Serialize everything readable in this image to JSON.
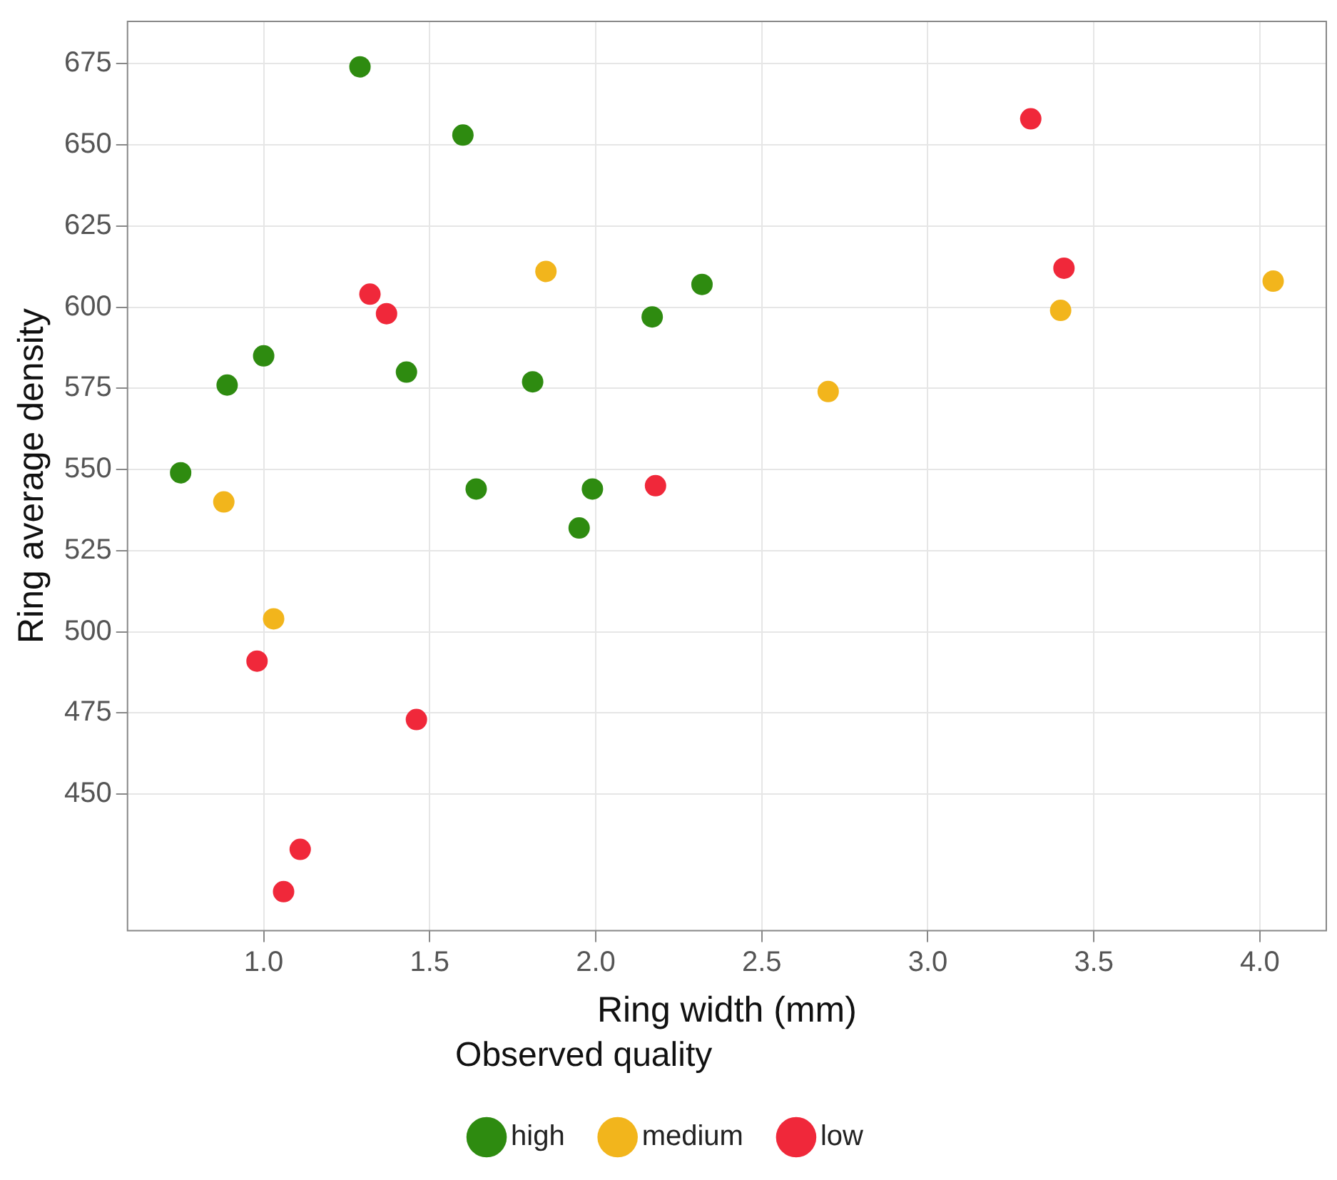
{
  "chart_data": {
    "type": "scatter",
    "xlabel": "Ring width (mm)",
    "ylabel": "Ring average density",
    "legend_title": "Observed quality",
    "xlim": [
      0.59,
      4.2
    ],
    "ylim": [
      408,
      688
    ],
    "xticks": [
      {
        "value": 1,
        "label": "1.0"
      },
      1.5,
      {
        "value": 2,
        "label": "2.0"
      },
      2.5,
      {
        "value": 3,
        "label": "3.0"
      },
      3.5,
      {
        "value": 4,
        "label": "4.0"
      }
    ],
    "yticks": [
      450,
      475,
      500,
      525,
      550,
      575,
      600,
      625,
      650,
      675
    ],
    "grid": true,
    "legend": "bottom",
    "marker": "circle",
    "series": [
      {
        "name": "high",
        "color": "#2e8b10",
        "x": [
          1.29,
          1.6,
          0.75,
          0.89,
          1.0,
          1.43,
          1.64,
          1.81,
          1.99,
          1.95,
          2.17,
          2.32
        ],
        "values": [
          674,
          653,
          549,
          576,
          585,
          580,
          544,
          577,
          544,
          532,
          597,
          607
        ]
      },
      {
        "name": "medium",
        "color": "#f2b51c",
        "x": [
          0.88,
          1.03,
          1.85,
          2.7,
          3.4,
          4.04
        ],
        "values": [
          540,
          504,
          611,
          574,
          599,
          608
        ]
      },
      {
        "name": "low",
        "color": "#f0283a",
        "x": [
          3.31,
          3.41,
          1.32,
          1.37,
          2.18,
          0.98,
          1.46,
          1.11,
          1.06
        ],
        "values": [
          658,
          612,
          604,
          598,
          545,
          491,
          473,
          433,
          420
        ]
      }
    ]
  }
}
